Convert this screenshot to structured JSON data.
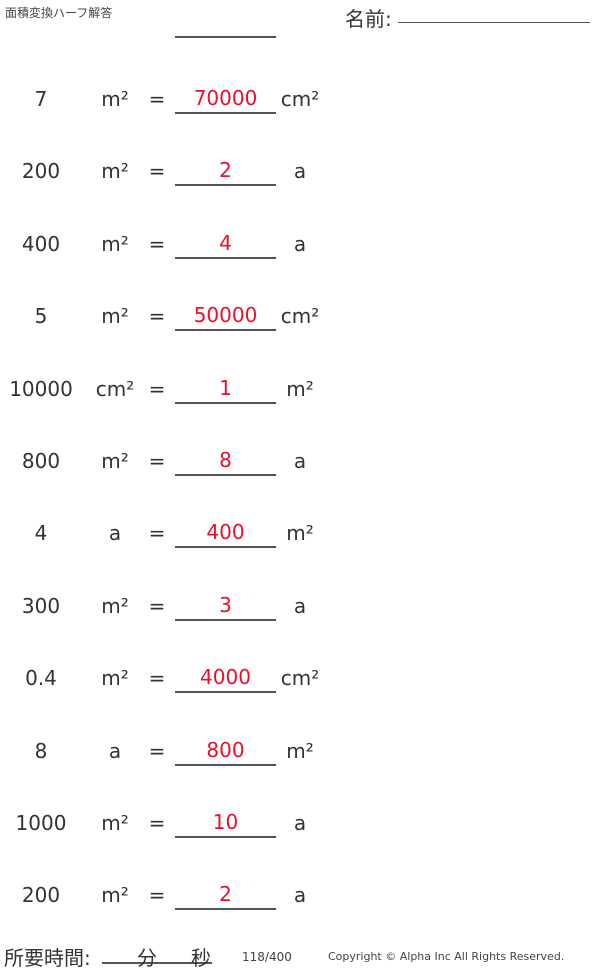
{
  "header": {
    "title": "面積変換ハーフ解答",
    "name_label": "名前:"
  },
  "problems": [
    {
      "value": "7",
      "from": "m²",
      "eq": "=",
      "answer": "70000",
      "to": "cm²"
    },
    {
      "value": "200",
      "from": "m²",
      "eq": "=",
      "answer": "2",
      "to": "a"
    },
    {
      "value": "400",
      "from": "m²",
      "eq": "=",
      "answer": "4",
      "to": "a"
    },
    {
      "value": "5",
      "from": "m²",
      "eq": "=",
      "answer": "50000",
      "to": "cm²"
    },
    {
      "value": "10000",
      "from": "cm²",
      "eq": "=",
      "answer": "1",
      "to": "m²"
    },
    {
      "value": "800",
      "from": "m²",
      "eq": "=",
      "answer": "8",
      "to": "a"
    },
    {
      "value": "4",
      "from": "a",
      "eq": "=",
      "answer": "400",
      "to": "m²"
    },
    {
      "value": "300",
      "from": "m²",
      "eq": "=",
      "answer": "3",
      "to": "a"
    },
    {
      "value": "0.4",
      "from": "m²",
      "eq": "=",
      "answer": "4000",
      "to": "cm²"
    },
    {
      "value": "8",
      "from": "a",
      "eq": "=",
      "answer": "800",
      "to": "m²"
    },
    {
      "value": "1000",
      "from": "m²",
      "eq": "=",
      "answer": "10",
      "to": "a"
    },
    {
      "value": "200",
      "from": "m²",
      "eq": "=",
      "answer": "2",
      "to": "a"
    }
  ],
  "footer": {
    "time_label": "所要時間:",
    "minutes": "分",
    "seconds": "秒",
    "page": "118/400",
    "copyright": "Copyright © Alpha Inc All Rights Reserved."
  },
  "colors": {
    "answer": "#e8102a"
  }
}
